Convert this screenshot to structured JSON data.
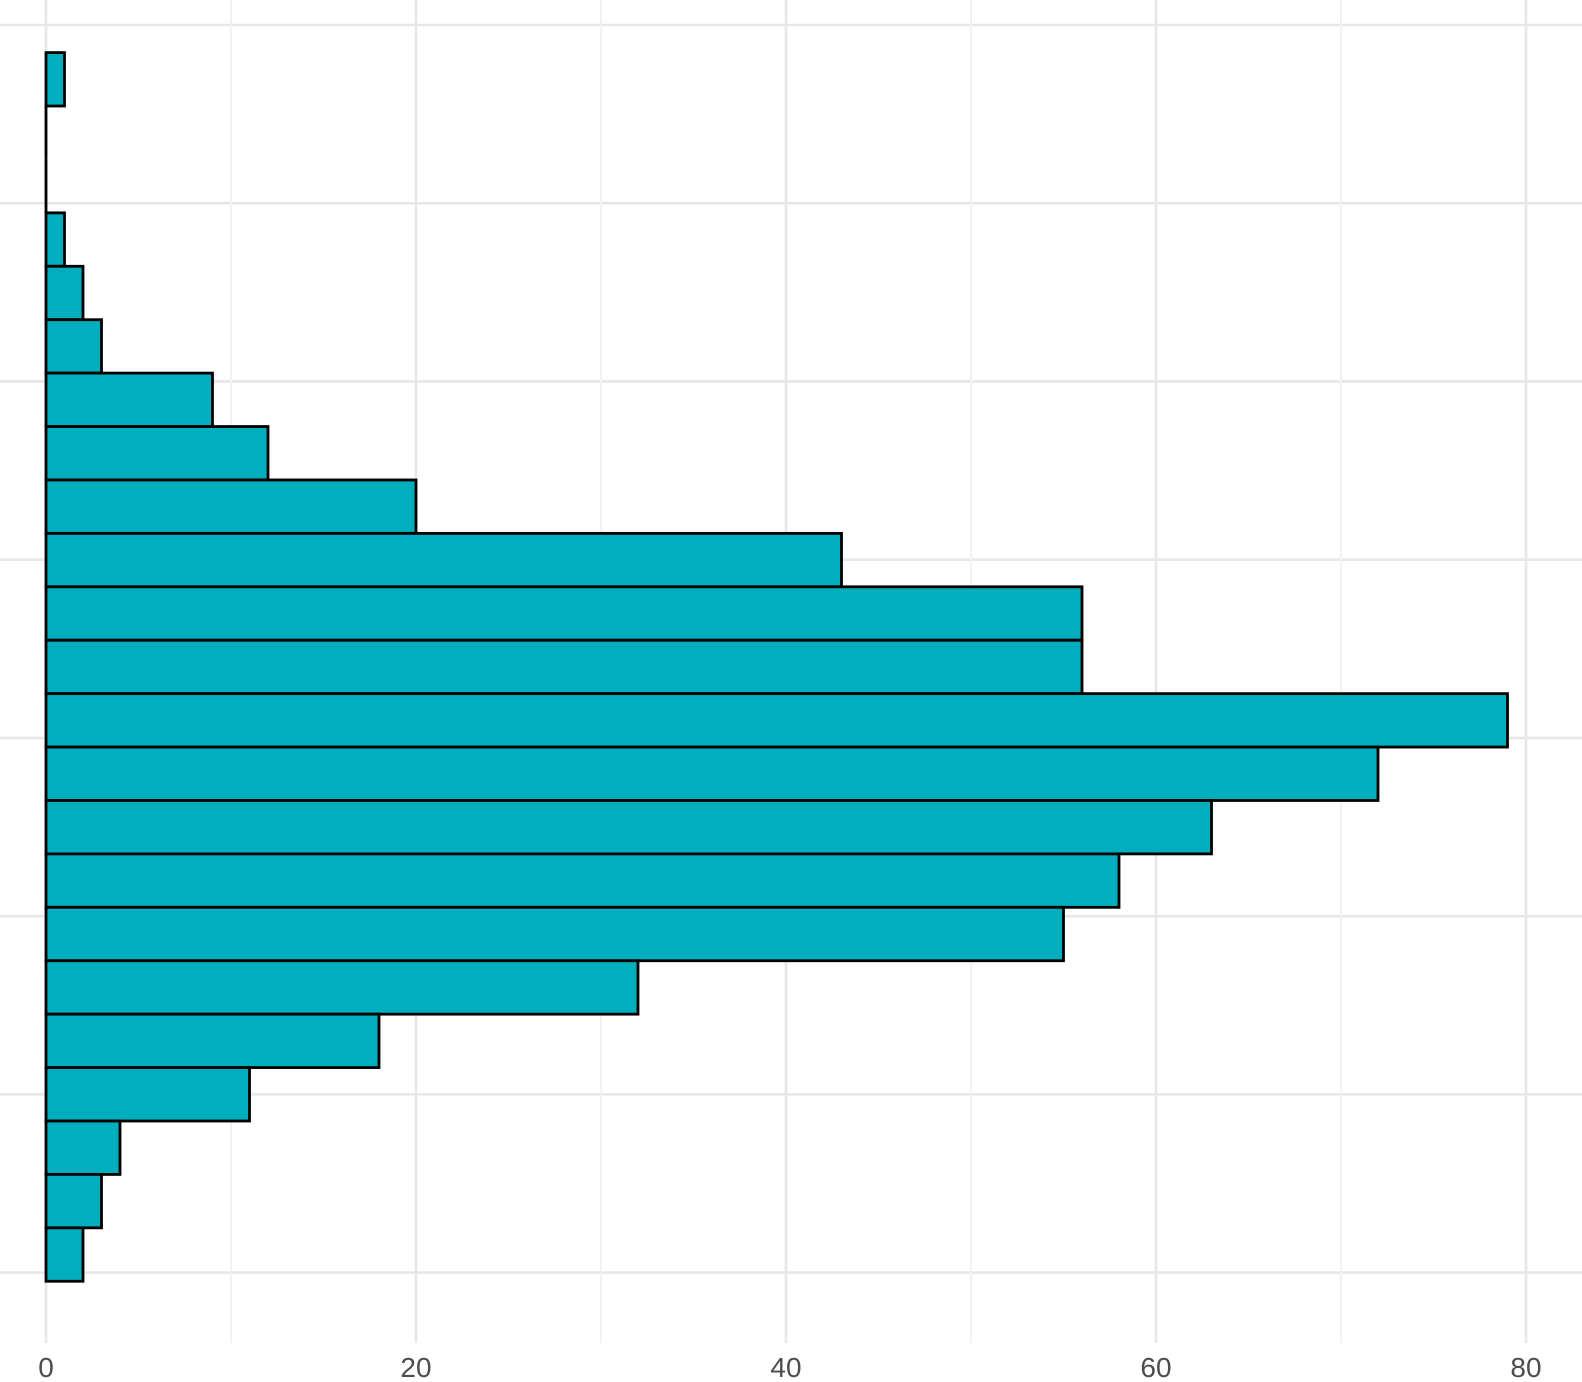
{
  "chart": {
    "background_color": "#ffffff",
    "bar_fill_color": "#00AEBE",
    "bar_stroke_color": "#000000",
    "major_gridline_color": "#E7E7E7",
    "minor_gridline_color": "#F2F2F2",
    "tick_label_color": "#4D4D4D"
  },
  "chart_data": {
    "type": "bar",
    "subtype": "histogram",
    "orientation": "horizontal",
    "title": "",
    "xlabel": "",
    "ylabel": "",
    "grid": true,
    "legend": false,
    "x_axis": {
      "tick_labels": [
        "0",
        "20",
        "40",
        "60",
        "80"
      ],
      "tick_values": [
        0,
        20,
        40,
        60,
        80
      ],
      "minor_tick_values": [
        10,
        30,
        50,
        70
      ]
    },
    "y_axis": {
      "tick_labels_visible": false,
      "bin_count": 23
    },
    "bin_counts_top_to_bottom": [
      1,
      0,
      0,
      1,
      2,
      3,
      9,
      12,
      20,
      43,
      56,
      56,
      79,
      72,
      63,
      58,
      55,
      32,
      18,
      11,
      4,
      3,
      2
    ]
  }
}
